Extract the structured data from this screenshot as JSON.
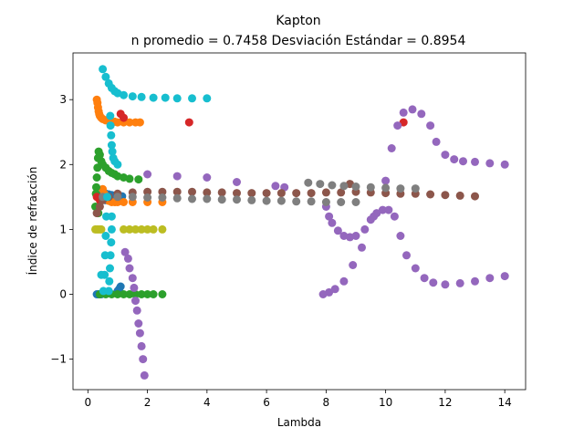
{
  "chart_data": {
    "type": "scatter",
    "title": "Kapton",
    "subtitle": "n promedio = 0.7458  Desviación Estándar = 0.8954",
    "xlabel": "Lambda",
    "ylabel": "Índice de refracción",
    "xlim": [
      -0.5,
      14.7
    ],
    "ylim": [
      -1.47,
      3.72
    ],
    "xticks": [
      0,
      2,
      4,
      6,
      8,
      10,
      12,
      14
    ],
    "yticks": [
      -1,
      0,
      1,
      2,
      3
    ],
    "grid": false,
    "legend": "none",
    "series": [
      {
        "color": "#1f77b4",
        "points": [
          [
            0.3,
            0.0
          ],
          [
            0.35,
            0.0
          ],
          [
            0.4,
            0.0
          ],
          [
            0.45,
            0.0
          ],
          [
            0.5,
            1.58
          ],
          [
            0.55,
            1.56
          ],
          [
            0.6,
            1.55
          ],
          [
            0.7,
            1.54
          ],
          [
            0.8,
            1.53
          ],
          [
            0.9,
            1.52
          ],
          [
            1.0,
            1.52
          ],
          [
            1.1,
            1.51
          ],
          [
            1.15,
            1.51
          ],
          [
            0.6,
            1.45
          ],
          [
            0.8,
            1.45
          ],
          [
            1.0,
            1.45
          ],
          [
            1.1,
            0.12
          ],
          [
            1.05,
            0.08
          ],
          [
            1.0,
            0.05
          ]
        ]
      },
      {
        "color": "#ff7f0e",
        "points": [
          [
            0.3,
            3.0
          ],
          [
            0.32,
            2.95
          ],
          [
            0.34,
            2.88
          ],
          [
            0.36,
            2.82
          ],
          [
            0.38,
            2.78
          ],
          [
            0.4,
            2.75
          ],
          [
            0.45,
            2.72
          ],
          [
            0.5,
            2.7
          ],
          [
            0.6,
            2.68
          ],
          [
            0.7,
            2.67
          ],
          [
            0.8,
            2.66
          ],
          [
            0.9,
            2.66
          ],
          [
            1.0,
            2.65
          ],
          [
            1.2,
            2.65
          ],
          [
            1.4,
            2.65
          ],
          [
            1.6,
            2.65
          ],
          [
            1.75,
            2.65
          ],
          [
            0.5,
            1.62
          ],
          [
            0.55,
            1.55
          ],
          [
            0.6,
            1.5
          ],
          [
            0.7,
            1.44
          ],
          [
            0.8,
            1.42
          ],
          [
            0.9,
            1.42
          ],
          [
            1.0,
            1.42
          ],
          [
            1.2,
            1.42
          ],
          [
            1.5,
            1.42
          ],
          [
            2.0,
            1.42
          ],
          [
            2.5,
            1.42
          ]
        ]
      },
      {
        "color": "#2ca02c",
        "points": [
          [
            0.25,
            1.35
          ],
          [
            0.27,
            1.55
          ],
          [
            0.28,
            1.65
          ],
          [
            0.3,
            1.8
          ],
          [
            0.32,
            1.95
          ],
          [
            0.34,
            2.1
          ],
          [
            0.36,
            2.2
          ],
          [
            0.4,
            2.15
          ],
          [
            0.45,
            2.05
          ],
          [
            0.5,
            2.0
          ],
          [
            0.6,
            1.95
          ],
          [
            0.7,
            1.9
          ],
          [
            0.8,
            1.87
          ],
          [
            0.9,
            1.85
          ],
          [
            1.0,
            1.82
          ],
          [
            1.2,
            1.8
          ],
          [
            1.4,
            1.78
          ],
          [
            1.7,
            1.77
          ],
          [
            0.35,
            1.25
          ],
          [
            0.4,
            0.0
          ],
          [
            0.6,
            0.0
          ],
          [
            0.8,
            0.0
          ],
          [
            1.0,
            0.0
          ],
          [
            1.2,
            0.0
          ],
          [
            1.4,
            0.0
          ],
          [
            1.6,
            0.0
          ],
          [
            1.8,
            0.0
          ],
          [
            2.0,
            0.0
          ],
          [
            2.2,
            0.0
          ],
          [
            2.5,
            0.0
          ]
        ]
      },
      {
        "color": "#d62728",
        "points": [
          [
            1.1,
            2.78
          ],
          [
            1.2,
            2.72
          ],
          [
            3.4,
            2.65
          ],
          [
            10.6,
            2.65
          ],
          [
            0.3,
            1.5
          ],
          [
            0.4,
            1.45
          ]
        ]
      },
      {
        "color": "#9467bd",
        "points": [
          [
            1.25,
            0.65
          ],
          [
            1.35,
            0.55
          ],
          [
            1.4,
            0.4
          ],
          [
            1.5,
            0.25
          ],
          [
            1.55,
            0.1
          ],
          [
            1.6,
            -0.1
          ],
          [
            1.65,
            -0.25
          ],
          [
            1.7,
            -0.45
          ],
          [
            1.75,
            -0.6
          ],
          [
            1.8,
            -0.8
          ],
          [
            1.85,
            -1.0
          ],
          [
            1.9,
            -1.25
          ],
          [
            2.0,
            1.85
          ],
          [
            3.0,
            1.82
          ],
          [
            4.0,
            1.8
          ],
          [
            5.0,
            1.73
          ],
          [
            6.3,
            1.67
          ],
          [
            6.6,
            1.65
          ],
          [
            8.0,
            1.35
          ],
          [
            8.1,
            1.2
          ],
          [
            8.2,
            1.1
          ],
          [
            8.4,
            0.98
          ],
          [
            8.6,
            0.9
          ],
          [
            8.8,
            0.88
          ],
          [
            9.0,
            0.9
          ],
          [
            9.3,
            1.0
          ],
          [
            9.5,
            1.15
          ],
          [
            9.7,
            1.25
          ],
          [
            9.9,
            1.3
          ],
          [
            10.1,
            1.3
          ],
          [
            10.3,
            1.2
          ],
          [
            10.5,
            0.9
          ],
          [
            10.7,
            0.6
          ],
          [
            11.0,
            0.4
          ],
          [
            11.3,
            0.25
          ],
          [
            11.6,
            0.18
          ],
          [
            12.0,
            0.15
          ],
          [
            12.5,
            0.17
          ],
          [
            13.0,
            0.2
          ],
          [
            13.5,
            0.25
          ],
          [
            14.0,
            0.28
          ],
          [
            7.9,
            0.0
          ],
          [
            8.1,
            0.03
          ],
          [
            8.3,
            0.08
          ],
          [
            8.6,
            0.2
          ],
          [
            8.9,
            0.45
          ],
          [
            9.2,
            0.72
          ],
          [
            9.6,
            1.2
          ],
          [
            10.0,
            1.75
          ],
          [
            10.2,
            2.25
          ],
          [
            10.4,
            2.6
          ],
          [
            10.6,
            2.8
          ],
          [
            10.9,
            2.85
          ],
          [
            11.2,
            2.78
          ],
          [
            11.5,
            2.6
          ],
          [
            11.7,
            2.35
          ],
          [
            12.0,
            2.15
          ],
          [
            12.3,
            2.08
          ],
          [
            12.6,
            2.05
          ],
          [
            13.0,
            2.04
          ],
          [
            13.5,
            2.02
          ],
          [
            14.0,
            2.0
          ]
        ]
      },
      {
        "color": "#8c564b",
        "points": [
          [
            0.3,
            1.25
          ],
          [
            0.4,
            1.35
          ],
          [
            0.5,
            1.45
          ],
          [
            0.7,
            1.5
          ],
          [
            1.0,
            1.55
          ],
          [
            1.5,
            1.57
          ],
          [
            2.0,
            1.58
          ],
          [
            2.5,
            1.58
          ],
          [
            3.0,
            1.58
          ],
          [
            3.5,
            1.58
          ],
          [
            4.0,
            1.57
          ],
          [
            4.5,
            1.57
          ],
          [
            5.0,
            1.56
          ],
          [
            5.5,
            1.56
          ],
          [
            6.0,
            1.56
          ],
          [
            6.5,
            1.56
          ],
          [
            7.0,
            1.56
          ],
          [
            7.5,
            1.56
          ],
          [
            8.0,
            1.57
          ],
          [
            8.5,
            1.57
          ],
          [
            8.8,
            1.7
          ],
          [
            9.0,
            1.58
          ],
          [
            9.5,
            1.57
          ],
          [
            10.0,
            1.56
          ],
          [
            10.5,
            1.55
          ],
          [
            11.0,
            1.55
          ],
          [
            11.5,
            1.54
          ],
          [
            12.0,
            1.53
          ],
          [
            12.5,
            1.52
          ],
          [
            13.0,
            1.51
          ]
        ]
      },
      {
        "color": "#7f7f7f",
        "points": [
          [
            0.5,
            1.5
          ],
          [
            1.0,
            1.5
          ],
          [
            1.5,
            1.5
          ],
          [
            2.0,
            1.49
          ],
          [
            2.5,
            1.49
          ],
          [
            3.0,
            1.48
          ],
          [
            3.5,
            1.47
          ],
          [
            4.0,
            1.47
          ],
          [
            4.5,
            1.46
          ],
          [
            5.0,
            1.46
          ],
          [
            5.5,
            1.45
          ],
          [
            6.0,
            1.44
          ],
          [
            6.5,
            1.44
          ],
          [
            7.0,
            1.43
          ],
          [
            7.5,
            1.43
          ],
          [
            8.0,
            1.42
          ],
          [
            8.5,
            1.42
          ],
          [
            9.0,
            1.42
          ],
          [
            7.4,
            1.72
          ],
          [
            7.8,
            1.7
          ],
          [
            8.2,
            1.68
          ],
          [
            8.6,
            1.67
          ],
          [
            9.0,
            1.66
          ],
          [
            9.5,
            1.65
          ],
          [
            10.0,
            1.64
          ],
          [
            10.5,
            1.63
          ],
          [
            11.0,
            1.63
          ]
        ]
      },
      {
        "color": "#bcbd22",
        "points": [
          [
            0.25,
            1.0
          ],
          [
            0.3,
            1.0
          ],
          [
            0.35,
            1.0
          ],
          [
            0.4,
            1.0
          ],
          [
            0.45,
            1.0
          ],
          [
            1.2,
            1.0
          ],
          [
            1.4,
            1.0
          ],
          [
            1.6,
            1.0
          ],
          [
            1.8,
            1.0
          ],
          [
            2.0,
            1.0
          ],
          [
            2.2,
            1.0
          ],
          [
            2.5,
            1.0
          ]
        ]
      },
      {
        "color": "#17becf",
        "points": [
          [
            0.5,
            3.47
          ],
          [
            0.6,
            3.35
          ],
          [
            0.7,
            3.25
          ],
          [
            0.8,
            3.18
          ],
          [
            0.9,
            3.13
          ],
          [
            1.0,
            3.1
          ],
          [
            1.2,
            3.07
          ],
          [
            1.5,
            3.05
          ],
          [
            1.8,
            3.04
          ],
          [
            2.2,
            3.03
          ],
          [
            2.6,
            3.03
          ],
          [
            3.0,
            3.02
          ],
          [
            3.5,
            3.02
          ],
          [
            4.0,
            3.02
          ],
          [
            0.75,
            2.75
          ],
          [
            0.76,
            2.6
          ],
          [
            0.78,
            2.45
          ],
          [
            0.8,
            2.3
          ],
          [
            0.82,
            2.2
          ],
          [
            0.85,
            2.1
          ],
          [
            0.9,
            2.05
          ],
          [
            1.0,
            2.0
          ],
          [
            0.8,
            1.2
          ],
          [
            0.8,
            1.0
          ],
          [
            0.78,
            0.8
          ],
          [
            0.76,
            0.6
          ],
          [
            0.74,
            0.4
          ],
          [
            0.72,
            0.2
          ],
          [
            0.7,
            0.05
          ],
          [
            0.65,
            1.5
          ],
          [
            0.62,
            1.2
          ],
          [
            0.6,
            0.9
          ],
          [
            0.58,
            0.6
          ],
          [
            0.56,
            0.3
          ],
          [
            0.52,
            0.05
          ],
          [
            0.45,
            0.3
          ]
        ]
      }
    ]
  }
}
